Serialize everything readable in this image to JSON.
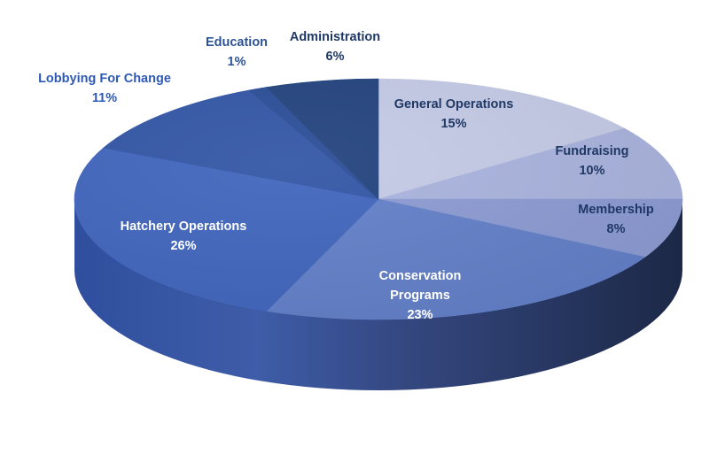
{
  "chart_data": {
    "type": "pie",
    "title": "",
    "start_at": "top",
    "direction": "clockwise",
    "slices": [
      {
        "label": "General Operations",
        "value": 15,
        "display": "15%",
        "color": "#c5cbe6",
        "label_color": "#1f3864"
      },
      {
        "label": "Fundraising",
        "value": 10,
        "display": "10%",
        "color": "#aab4de",
        "label_color": "#1f3864"
      },
      {
        "label": "Membership",
        "value": 8,
        "display": "8%",
        "color": "#8c9bd3",
        "label_color": "#1f3864"
      },
      {
        "label": "Conservation Programs",
        "label_lines": [
          "Conservation",
          "Programs"
        ],
        "value": 23,
        "display": "23%",
        "color": "#6380c8",
        "label_color": "#ffffff"
      },
      {
        "label": "Hatchery Operations",
        "value": 26,
        "display": "26%",
        "color": "#4266bd",
        "label_color": "#ffffff"
      },
      {
        "label": "Lobbying For Change",
        "value": 11,
        "display": "11%",
        "color": "#3356a6",
        "label_color": "#2e5ab5"
      },
      {
        "label": "Education",
        "value": 1,
        "display": "1%",
        "color": "#2c4e98",
        "label_color": "#2f5496"
      },
      {
        "label": "Administration",
        "value": 6,
        "display": "6%",
        "color": "#24447f",
        "label_color": "#1f3864"
      }
    ],
    "legend": "none",
    "style": "3d"
  }
}
